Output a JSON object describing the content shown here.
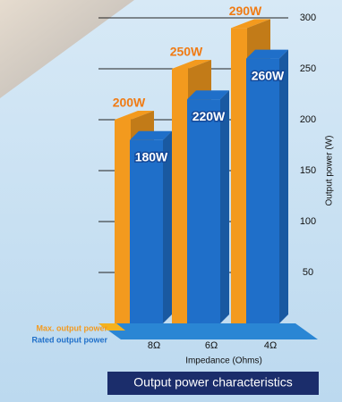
{
  "chart_data": {
    "type": "bar3d",
    "title": "Output power characteristics",
    "x_label": "Impedance (Ohms)",
    "y_label": "Output power (W)",
    "categories": [
      "8Ω",
      "6Ω",
      "4Ω"
    ],
    "series": [
      {
        "name": "Max. output power",
        "color": "#f39a1e",
        "values": [
          200,
          250,
          290
        ],
        "value_labels": [
          "200W",
          "250W",
          "290W"
        ]
      },
      {
        "name": "Rated output power",
        "color": "#1f6fc9",
        "values": [
          180,
          220,
          260
        ],
        "value_labels": [
          "180W",
          "220W",
          "260W"
        ]
      }
    ],
    "ylim": [
      0,
      300
    ],
    "yticks": [
      50,
      100,
      150,
      200,
      250,
      300
    ],
    "grid": true
  }
}
